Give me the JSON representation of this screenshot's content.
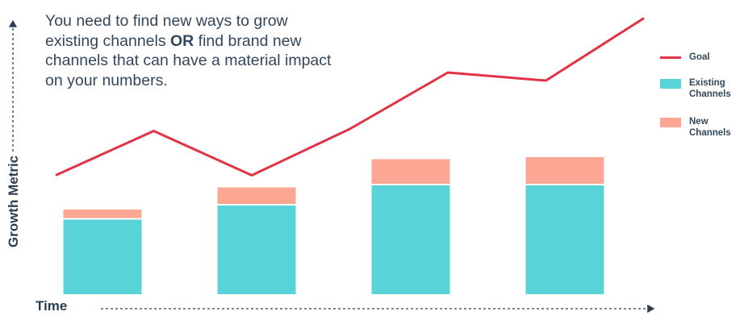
{
  "annotation": {
    "before": "You need to find new ways to grow existing channels ",
    "emphasis": "OR",
    "after": " find brand new channels that can have a material impact on your numbers."
  },
  "chart_data": {
    "type": "bar",
    "stacked": true,
    "categories": [
      "",
      "",
      "",
      ""
    ],
    "series": [
      {
        "name": "Existing Channels",
        "values": [
          37,
          44,
          54,
          54
        ],
        "color": "#58d4d8"
      },
      {
        "name": "New Channels",
        "values": [
          5,
          9,
          13,
          14
        ],
        "color": "#fba793"
      }
    ],
    "line_series": {
      "name": "Goal",
      "x": [
        0,
        1,
        2,
        3,
        4,
        5,
        6
      ],
      "values": [
        59,
        81,
        59,
        82,
        110,
        106,
        137
      ],
      "color": "#e23245"
    },
    "xlabel": "Time",
    "ylabel": "Growth Metric",
    "ylim": [
      0,
      140
    ],
    "grid": false,
    "legend_position": "right"
  }
}
